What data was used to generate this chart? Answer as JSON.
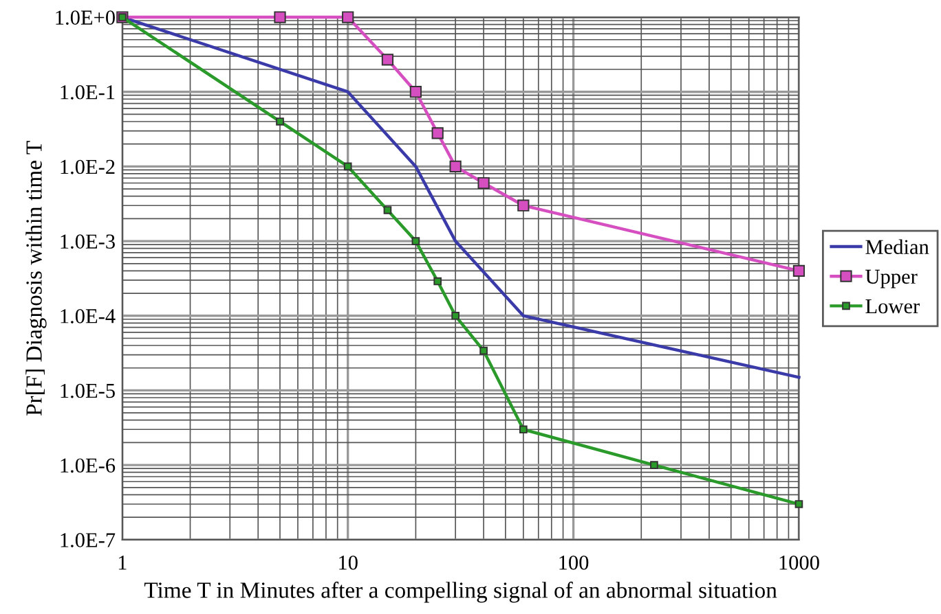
{
  "chart_data": {
    "type": "line",
    "xlabel": "Time T in Minutes after a compelling signal of an abnormal situation",
    "ylabel": "Pr[F] Diagnosis within time T",
    "log": "xy",
    "xlim": [
      1,
      1000
    ],
    "xticks": [
      1,
      10,
      100,
      1000
    ],
    "ylim": [
      1e-07,
      1
    ],
    "yticks": [
      {
        "value": 1e-07,
        "label": "1.0E-7"
      },
      {
        "value": 1e-06,
        "label": "1.0E-6"
      },
      {
        "value": 1e-05,
        "label": "1.0E-5"
      },
      {
        "value": 0.0001,
        "label": "1.0E-4"
      },
      {
        "value": 0.001,
        "label": "1.0E-3"
      },
      {
        "value": 0.01,
        "label": "1.0E-2"
      },
      {
        "value": 0.1,
        "label": "1.0E-1"
      },
      {
        "value": 1,
        "label": "1.0E+0"
      }
    ],
    "grid": true,
    "legend": "right",
    "line_style": "solid",
    "series": [
      {
        "name": "Median",
        "color": "#3a3aa8",
        "marker": "none",
        "x": [
          1,
          10,
          20,
          30,
          60,
          1000
        ],
        "values": [
          1,
          0.1,
          0.01,
          0.001,
          0.0001,
          1.5e-05
        ]
      },
      {
        "name": "Upper",
        "color": "#d64fc0",
        "marker": "square",
        "x": [
          1,
          5,
          10,
          15,
          20,
          25,
          30,
          40,
          60,
          1000
        ],
        "values": [
          1,
          1,
          1,
          0.27,
          0.1,
          0.028,
          0.01,
          0.006,
          0.003,
          0.0004
        ]
      },
      {
        "name": "Lower",
        "color": "#2a9a2a",
        "marker": "square",
        "x": [
          1,
          5,
          10,
          15,
          20,
          25,
          30,
          40,
          60,
          228,
          1000
        ],
        "values": [
          1,
          0.04,
          0.01,
          0.0026,
          0.001,
          0.00029,
          0.0001,
          3.4e-05,
          3e-06,
          1e-06,
          3e-07
        ]
      }
    ]
  }
}
